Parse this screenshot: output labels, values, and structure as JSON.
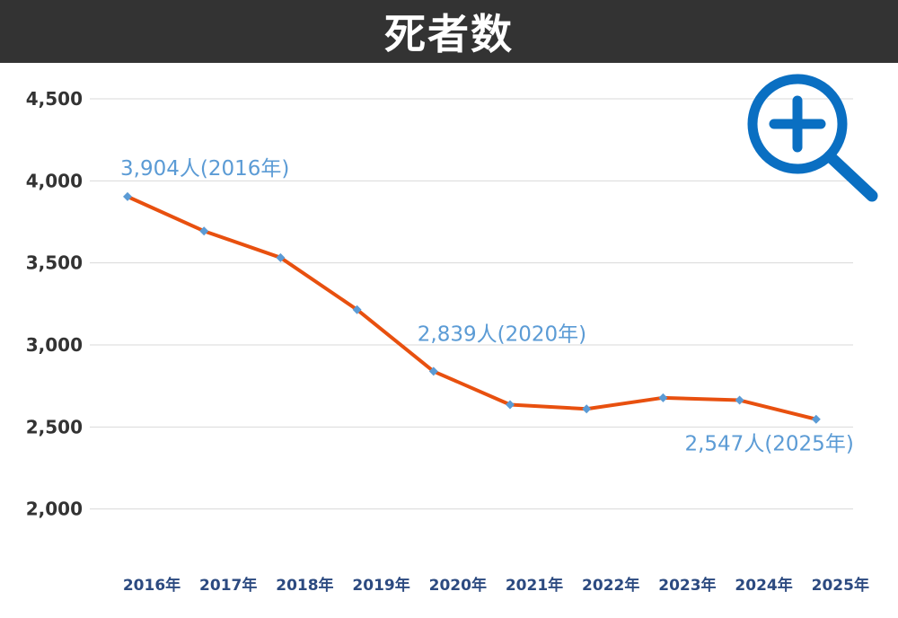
{
  "title": "死者数",
  "zoom_icon": "zoom-in-icon",
  "colors": {
    "line": "#e8500f",
    "marker": "#5b9bd5",
    "annotation": "#5b9bd5",
    "icon": "#0a6fc2"
  },
  "chart_data": {
    "type": "line",
    "title": "死者数",
    "categories": [
      "2016年",
      "2017年",
      "2018年",
      "2019年",
      "2020年",
      "2021年",
      "2022年",
      "2023年",
      "2024年",
      "2025年"
    ],
    "values": [
      3904,
      3694,
      3532,
      3215,
      2839,
      2636,
      2610,
      2678,
      2663,
      2547
    ],
    "ylim": [
      1500,
      4500
    ],
    "yticks": [
      "4,500",
      "4,000",
      "3,500",
      "3,000",
      "2,500",
      "2,000"
    ],
    "ytick_values": [
      4500,
      4000,
      3500,
      3000,
      2500,
      2000
    ],
    "grid": true,
    "annotations": [
      {
        "index": 0,
        "text": "3,904人(2016年)"
      },
      {
        "index": 4,
        "text": "2,839人(2020年)"
      },
      {
        "index": 9,
        "text": "2,547人(2025年)"
      }
    ]
  }
}
